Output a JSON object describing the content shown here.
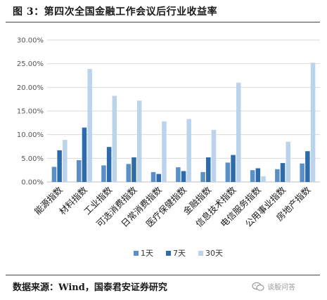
{
  "title": "图 3：第四次全国金融工作会议后行业收益率",
  "source": "数据来源：Wind，国泰君安证券研究",
  "watermark": {
    "text": "谈股问答",
    "icon": "wechat-icon"
  },
  "colors": {
    "series_1d": "#5b8fc7",
    "series_7d": "#2e6bab",
    "series_30d": "#bcd3ec"
  },
  "chart_data": {
    "type": "bar",
    "categories": [
      "能源指数",
      "材料指数",
      "工业指数",
      "可选消费指数",
      "日常消费指数",
      "医疗保健指数",
      "金融指数",
      "信息技术指数",
      "电信服务指数",
      "公用事业指数",
      "房地产指数"
    ],
    "series": [
      {
        "name": "1天",
        "values": [
          3.2,
          4.6,
          3.5,
          3.8,
          2.1,
          3.1,
          2.1,
          4.1,
          2.5,
          2.7,
          3.9
        ]
      },
      {
        "name": "7天",
        "values": [
          6.7,
          11.5,
          7.4,
          5.2,
          1.7,
          2.3,
          5.2,
          5.7,
          2.9,
          4.0,
          6.5
        ]
      },
      {
        "name": "30天",
        "values": [
          8.9,
          23.9,
          18.2,
          17.2,
          12.8,
          13.3,
          11.0,
          21.0,
          1.2,
          8.5,
          25.2
        ]
      }
    ],
    "yticks": [
      "0.00%",
      "5.00%",
      "10.00%",
      "15.00%",
      "20.00%",
      "25.00%",
      "30.00%"
    ],
    "ylim": [
      0,
      30
    ],
    "grid": true,
    "legend": "bottom"
  }
}
